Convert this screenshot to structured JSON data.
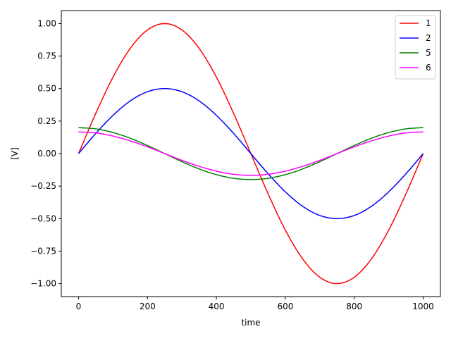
{
  "chart_data": {
    "type": "line",
    "title": "",
    "xlabel": "time",
    "ylabel": "[V]",
    "xlim": [
      -50,
      1050
    ],
    "ylim": [
      -1.1,
      1.1
    ],
    "xticks": [
      0,
      200,
      400,
      600,
      800,
      1000
    ],
    "xtick_labels": [
      "0",
      "200",
      "400",
      "600",
      "800",
      "1000"
    ],
    "yticks": [
      -1.0,
      -0.75,
      -0.5,
      -0.25,
      0.0,
      0.25,
      0.5,
      0.75,
      1.0
    ],
    "ytick_labels": [
      "−1.00",
      "−0.75",
      "−0.50",
      "−0.25",
      "0.00",
      "0.25",
      "0.50",
      "0.75",
      "1.00"
    ],
    "grid": false,
    "legend_position": "top-right",
    "x": [
      0,
      50,
      100,
      150,
      200,
      250,
      300,
      350,
      400,
      450,
      500,
      550,
      600,
      650,
      700,
      750,
      800,
      850,
      900,
      950,
      1000
    ],
    "series": [
      {
        "name": "1",
        "color": "#ff0000",
        "values": [
          0,
          0.309,
          0.588,
          0.809,
          0.951,
          1.0,
          0.951,
          0.809,
          0.588,
          0.309,
          0,
          -0.309,
          -0.588,
          -0.809,
          -0.951,
          -1.0,
          -0.951,
          -0.809,
          -0.588,
          -0.309,
          0
        ]
      },
      {
        "name": "2",
        "color": "#0000ff",
        "values": [
          0,
          0.155,
          0.294,
          0.405,
          0.476,
          0.5,
          0.476,
          0.405,
          0.294,
          0.155,
          0,
          -0.155,
          -0.294,
          -0.405,
          -0.476,
          -0.5,
          -0.476,
          -0.405,
          -0.294,
          -0.155,
          0
        ]
      },
      {
        "name": "5",
        "color": "#008000",
        "values": [
          0.2,
          0.19,
          0.162,
          0.118,
          0.062,
          0,
          -0.062,
          -0.118,
          -0.162,
          -0.19,
          -0.2,
          -0.19,
          -0.162,
          -0.118,
          -0.062,
          0,
          0.062,
          0.118,
          0.162,
          0.19,
          0.2
        ]
      },
      {
        "name": "6",
        "color": "#ff00ff",
        "values": [
          0.167,
          0.159,
          0.135,
          0.098,
          0.052,
          0,
          -0.052,
          -0.098,
          -0.135,
          -0.159,
          -0.167,
          -0.159,
          -0.135,
          -0.098,
          -0.052,
          0,
          0.052,
          0.098,
          0.135,
          0.159,
          0.167
        ]
      }
    ]
  }
}
